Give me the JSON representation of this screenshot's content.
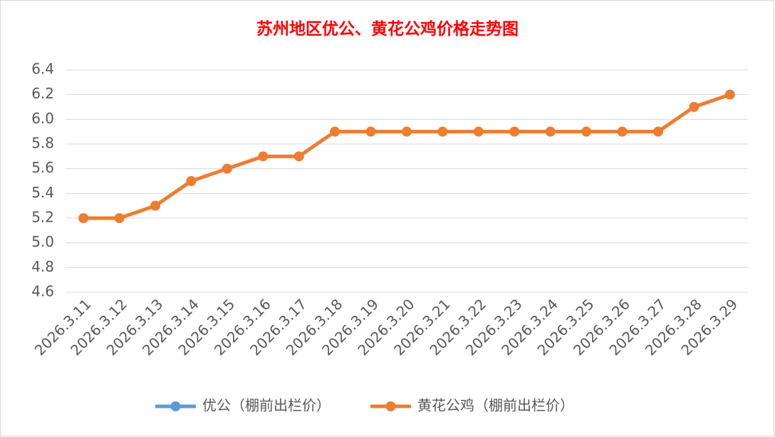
{
  "chart_data": {
    "type": "line",
    "title": "苏州地区优公、黄花公鸡价格走势图",
    "categories": [
      "2026.3.11",
      "2026.3.12",
      "2026.3.13",
      "2026.3.14",
      "2026.3.15",
      "2026.3.16",
      "2026.3.17",
      "2026.3.18",
      "2026.3.19",
      "2026.3.20",
      "2026.3.21",
      "2026.3.22",
      "2026.3.23",
      "2026.3.24",
      "2026.3.25",
      "2026.3.26",
      "2026.3.27",
      "2026.3.28",
      "2026.3.29"
    ],
    "series": [
      {
        "name": "优公（棚前出栏价）",
        "color": "#5b9bd5",
        "values": [
          null,
          null,
          null,
          null,
          null,
          null,
          null,
          null,
          null,
          null,
          null,
          null,
          null,
          null,
          null,
          null,
          null,
          null,
          null
        ]
      },
      {
        "name": "黄花公鸡（棚前出栏价）",
        "color": "#ed7d31",
        "values": [
          5.2,
          5.2,
          5.3,
          5.5,
          5.6,
          5.7,
          5.7,
          5.9,
          5.9,
          5.9,
          5.9,
          5.9,
          5.9,
          5.9,
          5.9,
          5.9,
          5.9,
          6.1,
          6.2
        ]
      }
    ],
    "ylim": [
      4.6,
      6.4
    ],
    "yticks": [
      4.6,
      4.8,
      {
        "value": 5,
        "label": "5.0"
      },
      5.2,
      5.4,
      5.6,
      5.8,
      {
        "value": 6,
        "label": "6.0"
      },
      6.2,
      6.4
    ],
    "grid": true,
    "legend": "bottom"
  }
}
